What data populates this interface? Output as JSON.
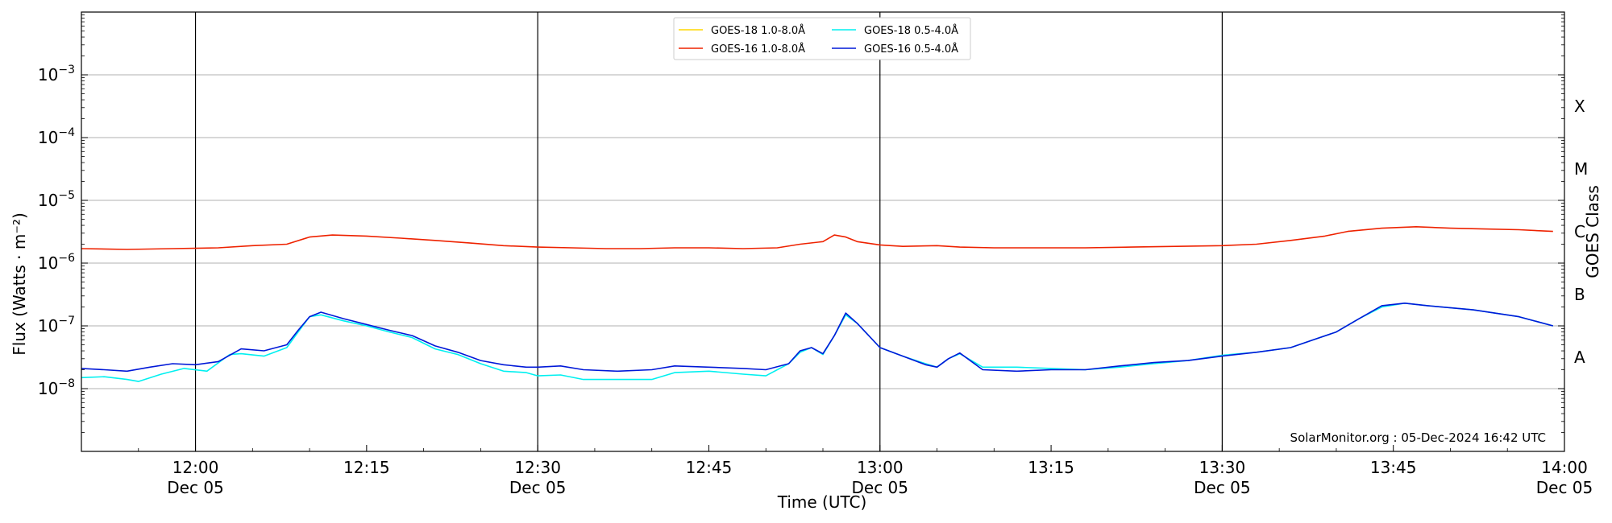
{
  "chart_data": {
    "type": "line",
    "title": "",
    "xlabel": "Time (UTC)",
    "ylabel": "Flux (Watts · m⁻²)",
    "y2label": "GOES Class",
    "y_scale": "log",
    "ylim": [
      "1e-9",
      "1e-2"
    ],
    "xlim": [
      "11:50",
      "14:00"
    ],
    "grid": "horizontal at decades",
    "legend_position": "top-center",
    "x_ticks": [
      {
        "time": "12:00",
        "label": "12:00",
        "date": "Dec 05",
        "vline": true
      },
      {
        "time": "12:15",
        "label": "12:15",
        "date": "",
        "vline": false
      },
      {
        "time": "12:30",
        "label": "12:30",
        "date": "Dec 05",
        "vline": true
      },
      {
        "time": "12:45",
        "label": "12:45",
        "date": "",
        "vline": false
      },
      {
        "time": "13:00",
        "label": "13:00",
        "date": "Dec 05",
        "vline": true
      },
      {
        "time": "13:15",
        "label": "13:15",
        "date": "",
        "vline": false
      },
      {
        "time": "13:30",
        "label": "13:30",
        "date": "Dec 05",
        "vline": true
      },
      {
        "time": "13:45",
        "label": "13:45",
        "date": "",
        "vline": false
      },
      {
        "time": "14:00",
        "label": "14:00",
        "date": "Dec 05",
        "vline": false
      }
    ],
    "y_ticks": [
      {
        "exp": -8,
        "base": "10",
        "sup": "−8"
      },
      {
        "exp": -7,
        "base": "10",
        "sup": "−7"
      },
      {
        "exp": -6,
        "base": "10",
        "sup": "−6"
      },
      {
        "exp": -5,
        "base": "10",
        "sup": "−5"
      },
      {
        "exp": -4,
        "base": "10",
        "sup": "−4"
      },
      {
        "exp": -3,
        "base": "10",
        "sup": "−3"
      }
    ],
    "goes_classes": [
      {
        "label": "A",
        "flux_exp": -7.5
      },
      {
        "label": "B",
        "flux_exp": -6.5
      },
      {
        "label": "C",
        "flux_exp": -5.5
      },
      {
        "label": "M",
        "flux_exp": -4.5
      },
      {
        "label": "X",
        "flux_exp": -3.5
      }
    ],
    "series": [
      {
        "name": "GOES-18 1.0-8.0Å",
        "color": "#ffd700",
        "x": [],
        "y": []
      },
      {
        "name": "GOES-16 1.0-8.0Å",
        "color": "#ee2200",
        "x": [
          "11:50",
          "11:54",
          "11:58",
          "12:02",
          "12:05",
          "12:08",
          "12:10",
          "12:12",
          "12:15",
          "12:18",
          "12:21",
          "12:24",
          "12:27",
          "12:30",
          "12:33",
          "12:36",
          "12:39",
          "12:42",
          "12:45",
          "12:48",
          "12:51",
          "12:53",
          "12:55",
          "12:56",
          "12:57",
          "12:58",
          "13:00",
          "13:02",
          "13:05",
          "13:07",
          "13:10",
          "13:14",
          "13:18",
          "13:22",
          "13:26",
          "13:30",
          "13:33",
          "13:36",
          "13:39",
          "13:41",
          "13:44",
          "13:47",
          "13:50",
          "13:53",
          "13:56",
          "13:59"
        ],
        "y": [
          1.7e-06,
          1.65e-06,
          1.7e-06,
          1.75e-06,
          1.9e-06,
          2e-06,
          2.6e-06,
          2.8e-06,
          2.7e-06,
          2.5e-06,
          2.3e-06,
          2.1e-06,
          1.9e-06,
          1.8e-06,
          1.75e-06,
          1.7e-06,
          1.7e-06,
          1.75e-06,
          1.75e-06,
          1.7e-06,
          1.75e-06,
          2e-06,
          2.2e-06,
          2.8e-06,
          2.6e-06,
          2.2e-06,
          1.95e-06,
          1.85e-06,
          1.9e-06,
          1.8e-06,
          1.75e-06,
          1.75e-06,
          1.75e-06,
          1.8e-06,
          1.85e-06,
          1.9e-06,
          2e-06,
          2.3e-06,
          2.7e-06,
          3.2e-06,
          3.6e-06,
          3.8e-06,
          3.6e-06,
          3.5e-06,
          3.4e-06,
          3.2e-06
        ]
      },
      {
        "name": "GOES-18 0.5-4.0Å",
        "color": "#00f0f0",
        "x": [
          "11:50",
          "11:52",
          "11:54",
          "11:55",
          "11:57",
          "11:59",
          "12:01",
          "12:03",
          "12:04",
          "12:06",
          "12:08",
          "12:09",
          "12:10",
          "12:11",
          "12:13",
          "12:15",
          "12:17",
          "12:19",
          "12:21",
          "12:23",
          "12:25",
          "12:27",
          "12:29",
          "12:30",
          "12:32",
          "12:34",
          "12:37",
          "12:40",
          "12:42",
          "12:45",
          "12:48",
          "12:50",
          "12:52",
          "12:53",
          "12:54",
          "12:55",
          "12:56",
          "12:57",
          "12:58",
          "13:00",
          "13:02",
          "13:04",
          "13:05",
          "13:06",
          "13:07",
          "13:09",
          "13:12",
          "13:15",
          "13:18",
          "13:21",
          "13:24",
          "13:27",
          "13:30",
          "13:33",
          "13:36",
          "13:38",
          "13:40",
          "13:42",
          "13:44",
          "13:46",
          "13:48",
          "13:52",
          "13:56",
          "13:59"
        ],
        "y": [
          1.5e-08,
          1.55e-08,
          1.4e-08,
          1.3e-08,
          1.7e-08,
          2.1e-08,
          1.9e-08,
          3.5e-08,
          3.6e-08,
          3.3e-08,
          4.5e-08,
          8e-08,
          1.4e-07,
          1.5e-07,
          1.2e-07,
          1e-07,
          8e-08,
          6.5e-08,
          4.3e-08,
          3.5e-08,
          2.5e-08,
          1.9e-08,
          1.8e-08,
          1.6e-08,
          1.65e-08,
          1.4e-08,
          1.4e-08,
          1.4e-08,
          1.8e-08,
          1.9e-08,
          1.7e-08,
          1.6e-08,
          2.5e-08,
          3.8e-08,
          4.5e-08,
          3.5e-08,
          7e-08,
          1.5e-07,
          1.1e-07,
          4.5e-08,
          3.3e-08,
          2.5e-08,
          2.2e-08,
          3e-08,
          3.6e-08,
          2.2e-08,
          2.2e-08,
          2.1e-08,
          2e-08,
          2.2e-08,
          2.5e-08,
          2.8e-08,
          3.4e-08,
          3.8e-08,
          4.5e-08,
          6e-08,
          8e-08,
          1.3e-07,
          2e-07,
          2.3e-07,
          2.1e-07,
          1.8e-07,
          1.4e-07,
          1e-07
        ]
      },
      {
        "name": "GOES-16 0.5-4.0Å",
        "color": "#0018d8",
        "x": [
          "11:50",
          "11:52",
          "11:54",
          "11:56",
          "11:58",
          "12:00",
          "12:02",
          "12:04",
          "12:06",
          "12:08",
          "12:09",
          "12:10",
          "12:11",
          "12:13",
          "12:15",
          "12:17",
          "12:19",
          "12:21",
          "12:23",
          "12:25",
          "12:27",
          "12:29",
          "12:30",
          "12:32",
          "12:34",
          "12:37",
          "12:40",
          "12:42",
          "12:45",
          "12:48",
          "12:50",
          "12:52",
          "12:53",
          "12:54",
          "12:55",
          "12:56",
          "12:57",
          "12:58",
          "13:00",
          "13:02",
          "13:04",
          "13:05",
          "13:06",
          "13:07",
          "13:09",
          "13:12",
          "13:15",
          "13:18",
          "13:21",
          "13:24",
          "13:27",
          "13:30",
          "13:33",
          "13:36",
          "13:38",
          "13:40",
          "13:42",
          "13:44",
          "13:46",
          "13:48",
          "13:52",
          "13:56",
          "13:59"
        ],
        "y": [
          2.1e-08,
          2e-08,
          1.9e-08,
          2.2e-08,
          2.5e-08,
          2.4e-08,
          2.7e-08,
          4.3e-08,
          4e-08,
          5e-08,
          8.5e-08,
          1.4e-07,
          1.65e-07,
          1.3e-07,
          1.05e-07,
          8.5e-08,
          7e-08,
          4.8e-08,
          3.8e-08,
          2.8e-08,
          2.4e-08,
          2.2e-08,
          2.2e-08,
          2.3e-08,
          2e-08,
          1.9e-08,
          2e-08,
          2.3e-08,
          2.2e-08,
          2.1e-08,
          2e-08,
          2.5e-08,
          4e-08,
          4.5e-08,
          3.6e-08,
          7e-08,
          1.6e-07,
          1.1e-07,
          4.5e-08,
          3.3e-08,
          2.4e-08,
          2.2e-08,
          3e-08,
          3.7e-08,
          2e-08,
          1.9e-08,
          2e-08,
          2e-08,
          2.3e-08,
          2.6e-08,
          2.8e-08,
          3.3e-08,
          3.8e-08,
          4.5e-08,
          6e-08,
          8e-08,
          1.3e-07,
          2.1e-07,
          2.3e-07,
          2.1e-07,
          1.8e-07,
          1.4e-07,
          1e-07
        ]
      }
    ],
    "annotation": "SolarMonitor.org : 05-Dec-2024 16:42 UTC"
  }
}
